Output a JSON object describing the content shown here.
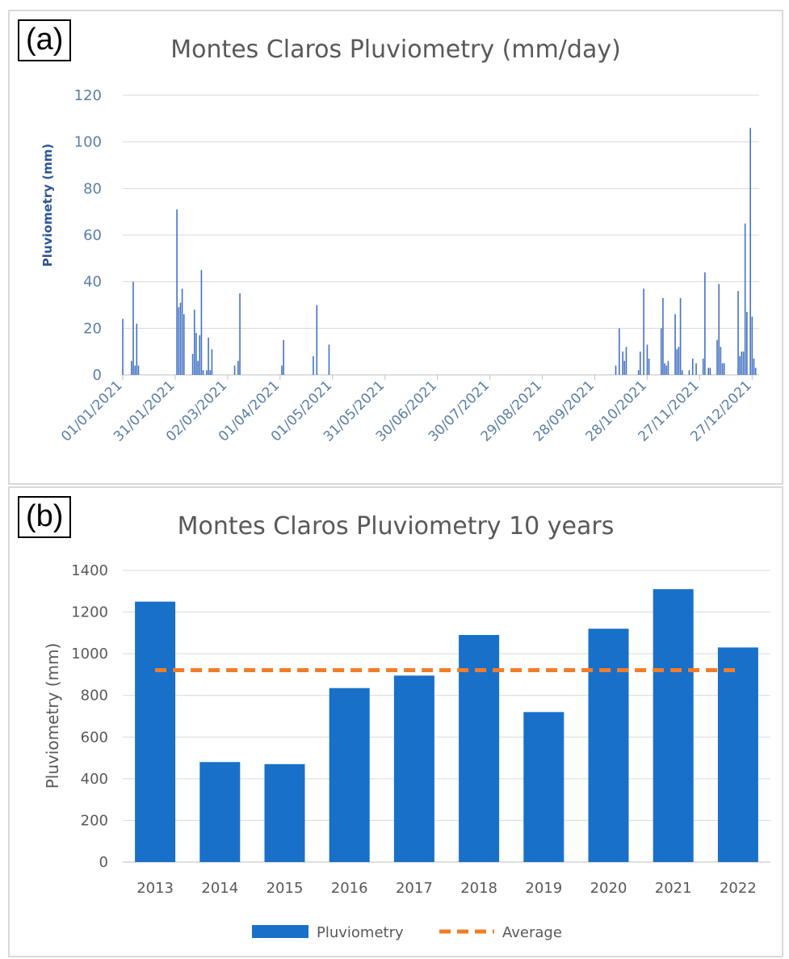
{
  "panels": {
    "a": {
      "tag": "(a)",
      "chart_data": {
        "type": "bar",
        "title": "Montes Claros Pluviometry (mm/day)",
        "xlabel": "",
        "ylabel": "Pluviometry (mm)",
        "ylim": [
          0,
          120
        ],
        "yticks": [
          0,
          20,
          40,
          60,
          80,
          100,
          120
        ],
        "xlim_days": [
          0,
          364
        ],
        "grid": true,
        "xtick_labels": [
          "01/01/2021",
          "31/01/2021",
          "02/03/2021",
          "01/04/2021",
          "01/05/2021",
          "31/05/2021",
          "30/06/2021",
          "30/07/2021",
          "29/08/2021",
          "28/09/2021",
          "28/10/2021",
          "27/11/2021",
          "27/12/2021"
        ],
        "series": [
          {
            "values": [
              {
                "date": "01/01/2021",
                "v": 24
              },
              {
                "date": "06/01/2021",
                "v": 6
              },
              {
                "date": "07/01/2021",
                "v": 40
              },
              {
                "date": "08/01/2021",
                "v": 4
              },
              {
                "date": "09/01/2021",
                "v": 22
              },
              {
                "date": "10/01/2021",
                "v": 4
              },
              {
                "date": "01/02/2021",
                "v": 71
              },
              {
                "date": "02/02/2021",
                "v": 29
              },
              {
                "date": "03/02/2021",
                "v": 31
              },
              {
                "date": "04/02/2021",
                "v": 37
              },
              {
                "date": "05/02/2021",
                "v": 26
              },
              {
                "date": "10/02/2021",
                "v": 9
              },
              {
                "date": "11/02/2021",
                "v": 28
              },
              {
                "date": "12/02/2021",
                "v": 18
              },
              {
                "date": "13/02/2021",
                "v": 6
              },
              {
                "date": "14/02/2021",
                "v": 17
              },
              {
                "date": "15/02/2021",
                "v": 45
              },
              {
                "date": "16/02/2021",
                "v": 2
              },
              {
                "date": "18/02/2021",
                "v": 2
              },
              {
                "date": "19/02/2021",
                "v": 16
              },
              {
                "date": "20/02/2021",
                "v": 2
              },
              {
                "date": "21/02/2021",
                "v": 11
              },
              {
                "date": "06/03/2021",
                "v": 4
              },
              {
                "date": "08/03/2021",
                "v": 6
              },
              {
                "date": "09/03/2021",
                "v": 35
              },
              {
                "date": "02/04/2021",
                "v": 4
              },
              {
                "date": "03/04/2021",
                "v": 15
              },
              {
                "date": "20/04/2021",
                "v": 8
              },
              {
                "date": "22/04/2021",
                "v": 30
              },
              {
                "date": "29/04/2021",
                "v": 13
              },
              {
                "date": "10/10/2021",
                "v": 4
              },
              {
                "date": "12/10/2021",
                "v": 20
              },
              {
                "date": "14/10/2021",
                "v": 10
              },
              {
                "date": "15/10/2021",
                "v": 6
              },
              {
                "date": "16/10/2021",
                "v": 12
              },
              {
                "date": "23/10/2021",
                "v": 2
              },
              {
                "date": "24/10/2021",
                "v": 10
              },
              {
                "date": "26/10/2021",
                "v": 37
              },
              {
                "date": "28/10/2021",
                "v": 13
              },
              {
                "date": "29/10/2021",
                "v": 7
              },
              {
                "date": "05/11/2021",
                "v": 20
              },
              {
                "date": "06/11/2021",
                "v": 33
              },
              {
                "date": "07/11/2021",
                "v": 5
              },
              {
                "date": "08/11/2021",
                "v": 4
              },
              {
                "date": "09/11/2021",
                "v": 6
              },
              {
                "date": "13/11/2021",
                "v": 26
              },
              {
                "date": "14/11/2021",
                "v": 11
              },
              {
                "date": "15/11/2021",
                "v": 12
              },
              {
                "date": "16/11/2021",
                "v": 33
              },
              {
                "date": "17/11/2021",
                "v": 2
              },
              {
                "date": "21/11/2021",
                "v": 2
              },
              {
                "date": "23/11/2021",
                "v": 7
              },
              {
                "date": "25/11/2021",
                "v": 5
              },
              {
                "date": "29/11/2021",
                "v": 7
              },
              {
                "date": "30/11/2021",
                "v": 44
              },
              {
                "date": "02/12/2021",
                "v": 3
              },
              {
                "date": "03/12/2021",
                "v": 3
              },
              {
                "date": "07/12/2021",
                "v": 15
              },
              {
                "date": "08/12/2021",
                "v": 39
              },
              {
                "date": "09/12/2021",
                "v": 12
              },
              {
                "date": "10/12/2021",
                "v": 5
              },
              {
                "date": "11/12/2021",
                "v": 5
              },
              {
                "date": "19/12/2021",
                "v": 36
              },
              {
                "date": "20/12/2021",
                "v": 8
              },
              {
                "date": "21/12/2021",
                "v": 10
              },
              {
                "date": "22/12/2021",
                "v": 10
              },
              {
                "date": "23/12/2021",
                "v": 65
              },
              {
                "date": "24/12/2021",
                "v": 27
              },
              {
                "date": "26/12/2021",
                "v": 106
              },
              {
                "date": "27/12/2021",
                "v": 25
              },
              {
                "date": "28/12/2021",
                "v": 7
              },
              {
                "date": "29/12/2021",
                "v": 3
              }
            ]
          }
        ],
        "colors": {
          "bars": "#4472c4",
          "grid": "#d9d9d9",
          "axis": "#bfbfbf"
        }
      }
    },
    "b": {
      "tag": "(b)",
      "chart_data": {
        "type": "bar",
        "title": "Montes Claros Pluviometry 10 years",
        "xlabel": "",
        "ylabel": "Pluviometry (mm)",
        "ylim": [
          0,
          1400
        ],
        "yticks": [
          0,
          200,
          400,
          600,
          800,
          1000,
          1200,
          1400
        ],
        "categories": [
          "2013",
          "2014",
          "2015",
          "2016",
          "2017",
          "2018",
          "2019",
          "2020",
          "2021",
          "2022"
        ],
        "grid": true,
        "series": [
          {
            "name": "Pluviometry",
            "type": "bar",
            "values": [
              1250,
              480,
              470,
              835,
              895,
              1090,
              720,
              1120,
              1310,
              1030
            ],
            "color": "#1870c9"
          },
          {
            "name": "Average",
            "type": "line",
            "style": "dashed",
            "values": [
              921,
              921,
              921,
              921,
              921,
              921,
              921,
              921,
              921,
              921
            ],
            "color": "#f07d2a"
          }
        ],
        "legend_position": "bottom-center",
        "colors": {
          "grid": "#d9d9d9",
          "axis": "#bfbfbf"
        }
      }
    }
  }
}
